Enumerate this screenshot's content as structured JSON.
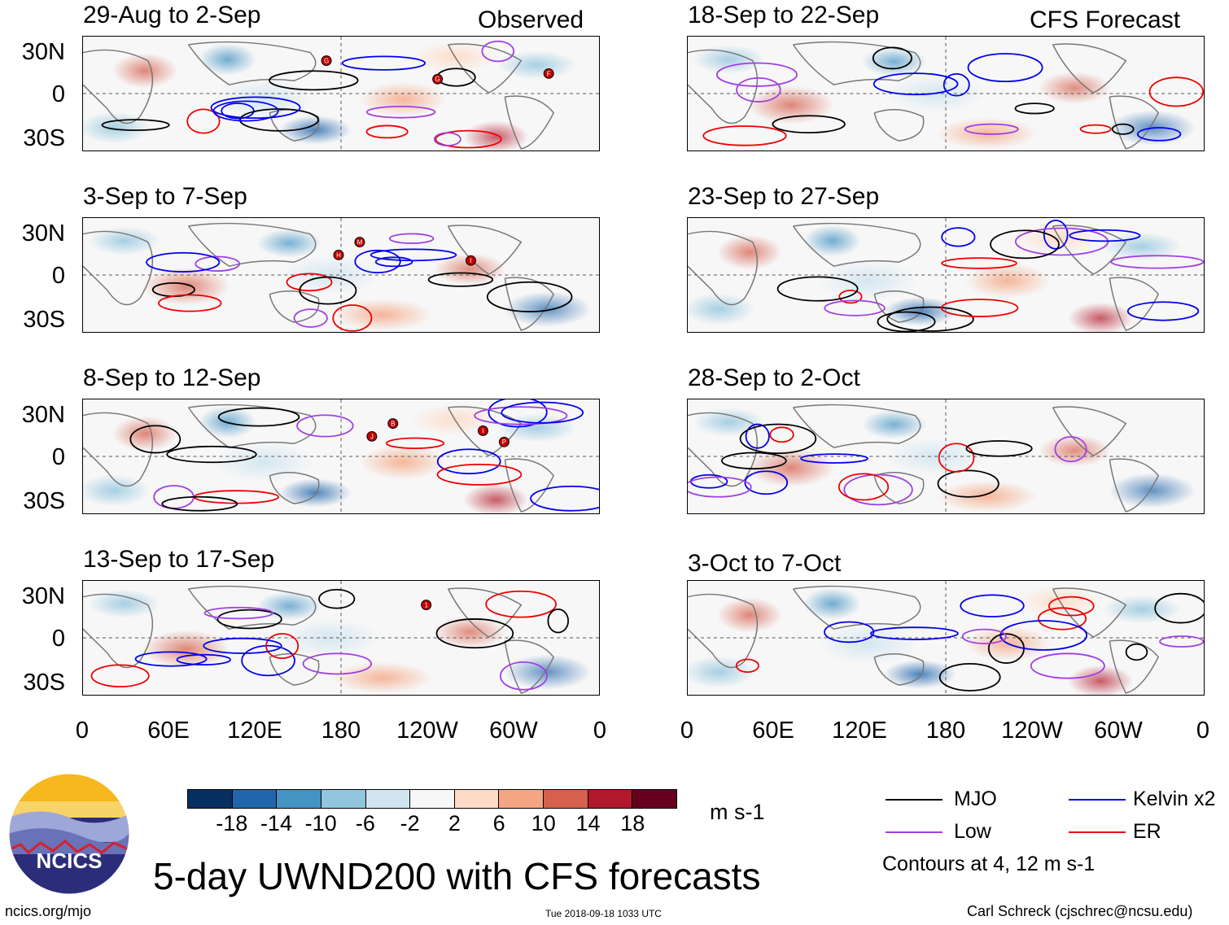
{
  "header": {
    "observed": "Observed",
    "forecast": "CFS Forecast"
  },
  "panels": [
    {
      "title": "29-Aug to 2-Sep",
      "storms": [
        "G",
        "G",
        "F"
      ]
    },
    {
      "title": "3-Sep to 7-Sep",
      "storms": [
        "M",
        "I",
        "H"
      ]
    },
    {
      "title": "8-Sep to 12-Sep",
      "storms": [
        "B",
        "P",
        "J",
        "I"
      ]
    },
    {
      "title": "13-Sep to 17-Sep",
      "storms": [
        "1"
      ]
    },
    {
      "title": "18-Sep to 22-Sep",
      "storms": []
    },
    {
      "title": "23-Sep to 27-Sep",
      "storms": []
    },
    {
      "title": "28-Sep to 2-Oct",
      "storms": []
    },
    {
      "title": "3-Oct to 7-Oct",
      "storms": []
    }
  ],
  "axes": {
    "lat_labels": [
      "30N",
      "0",
      "30S"
    ],
    "lon_labels": [
      "0",
      "60E",
      "120E",
      "180",
      "120W",
      "60W",
      "0"
    ]
  },
  "colorbar": {
    "labels": [
      "-18",
      "-14",
      "-10",
      "-6",
      "-2",
      "2",
      "6",
      "10",
      "14",
      "18"
    ],
    "colors": [
      "#053061",
      "#2166ac",
      "#4393c3",
      "#92c5de",
      "#d1e5f0",
      "#f7f7f7",
      "#fddbc7",
      "#f4a582",
      "#d6604d",
      "#b2182b",
      "#67001f"
    ],
    "units": "m s-1"
  },
  "legend": {
    "items": [
      {
        "label": "MJO",
        "color": "#000000"
      },
      {
        "label": "Kelvin x2",
        "color": "#0000ee"
      },
      {
        "label": "Low",
        "color": "#a040e0"
      },
      {
        "label": "ER",
        "color": "#ee0000"
      }
    ],
    "note": "Contours at 4, 12 m s-1"
  },
  "title": "5-day UWND200 with CFS forecasts",
  "logo_text": "NCICS",
  "footer": {
    "left": "ncics.org/mjo",
    "center": "Tue 2018-09-18 1033 UTC",
    "right": "Carl Schreck (cjschrec@ncsu.edu)"
  }
}
